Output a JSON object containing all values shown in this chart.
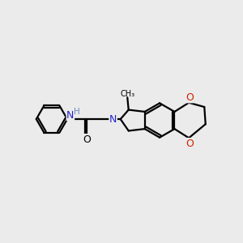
{
  "bg_color": "#ebebeb",
  "bond_color": "#000000",
  "N_color": "#2222cc",
  "O_color": "#cc2200",
  "H_color": "#6688bb",
  "lw": 1.6,
  "figsize": [
    3.0,
    3.0
  ],
  "dpi": 100,
  "xlim": [
    0,
    10
  ],
  "ylim": [
    0,
    10
  ]
}
